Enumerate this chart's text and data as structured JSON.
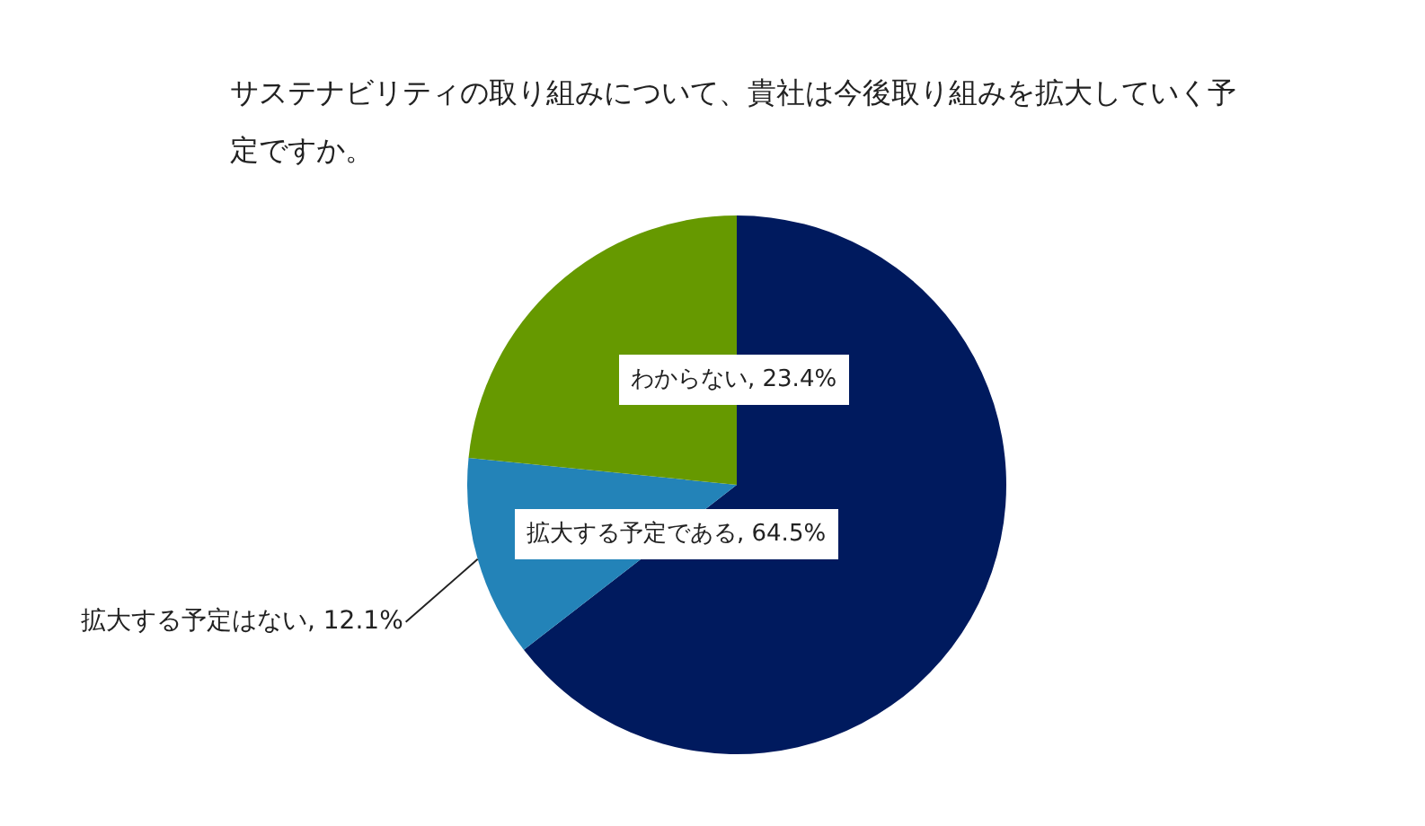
{
  "chart_data": {
    "type": "pie",
    "title": "サステナビリティの取り組みについて、貴社は今後取り組みを拡大していく予定ですか。",
    "categories": [
      "拡大する予定である",
      "拡大する予定はない",
      "わからない"
    ],
    "values": [
      64.5,
      12.1,
      23.4
    ],
    "colors": [
      "#001a5e",
      "#2383b8",
      "#669900"
    ],
    "value_labels": [
      "64.5%",
      "12.1%",
      "23.4%"
    ],
    "legend": false
  }
}
